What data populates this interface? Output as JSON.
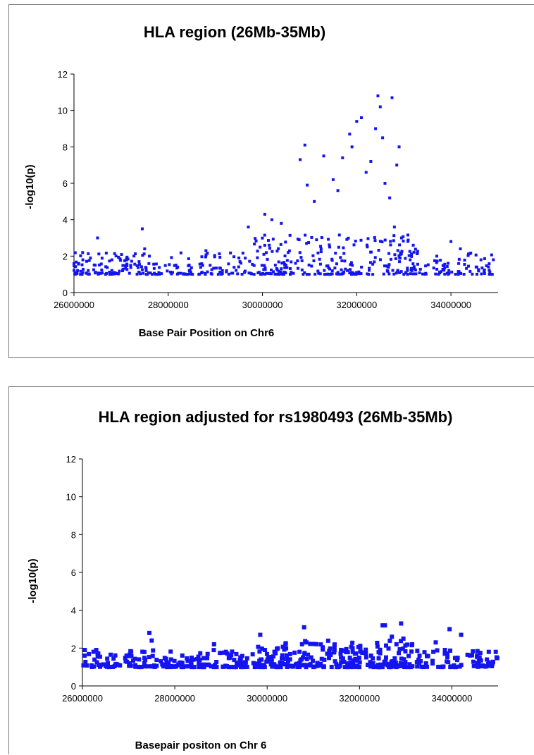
{
  "chart_data": [
    {
      "type": "scatter",
      "title": "HLA region (26Mb-35Mb)",
      "xlabel": "Base Pair Position on Chr6",
      "ylabel": "-log10(p)",
      "xlim": [
        26000000,
        35000000
      ],
      "ylim": [
        0,
        12
      ],
      "xticks": [
        "26000000",
        "28000000",
        "30000000",
        "32000000",
        "34000000"
      ],
      "yticks": [
        "0",
        "2",
        "4",
        "6",
        "8",
        "10",
        "12"
      ],
      "grid": false,
      "legend": "none",
      "marker_color": "#1414f0",
      "series": [
        {
          "x": [
            26100000,
            26350000,
            26500000,
            27450000,
            27500000,
            27600000,
            28200000,
            28800000,
            29500000,
            29700000,
            30050000,
            30200000,
            30400000,
            30800000,
            30900000,
            30950000,
            31100000,
            31300000,
            31500000,
            31600000,
            31700000,
            31850000,
            31900000,
            32000000,
            32100000,
            32200000,
            32300000,
            32400000,
            32450000,
            32500000,
            32550000,
            32600000,
            32700000,
            32750000,
            32800000,
            32850000,
            32900000,
            32950000,
            33200000,
            33700000,
            34000000,
            34200000,
            34550000,
            34900000
          ],
          "y": [
            1.6,
            1.9,
            3.0,
            3.5,
            2.4,
            2.0,
            1.4,
            2.3,
            1.9,
            3.6,
            4.3,
            4.0,
            3.8,
            7.3,
            8.1,
            5.9,
            5.0,
            7.5,
            6.2,
            5.6,
            7.4,
            8.7,
            8.0,
            9.4,
            9.6,
            6.6,
            7.2,
            9.0,
            10.8,
            10.2,
            8.5,
            6.0,
            5.2,
            10.7,
            3.6,
            7.0,
            8.0,
            3.0,
            2.6,
            2.0,
            2.8,
            2.4,
            1.4,
            1.8
          ]
        }
      ]
    },
    {
      "type": "scatter",
      "title": "HLA region adjusted for rs1980493 (26Mb-35Mb)",
      "xlabel": "Basepair positon on Chr 6",
      "ylabel": "-log10(p)",
      "xlim": [
        26000000,
        35000000
      ],
      "ylim": [
        0,
        12
      ],
      "xticks": [
        "26000000",
        "28000000",
        "30000000",
        "32000000",
        "34000000"
      ],
      "yticks": [
        "0",
        "2",
        "4",
        "6",
        "8",
        "10",
        "12"
      ],
      "grid": false,
      "legend": "none",
      "marker_color": "#1414f0",
      "series": [
        {
          "x": [
            26050000,
            26300000,
            26550000,
            27000000,
            27450000,
            27500000,
            27700000,
            28100000,
            28850000,
            29200000,
            29850000,
            29950000,
            30100000,
            30700000,
            30800000,
            30850000,
            31300000,
            31600000,
            31850000,
            32250000,
            32500000,
            32550000,
            32700000,
            32800000,
            32900000,
            32950000,
            33300000,
            33650000,
            33850000,
            33950000,
            34200000,
            34600000,
            34950000
          ],
          "y": [
            1.9,
            1.9,
            1.2,
            1.6,
            2.8,
            2.4,
            1.3,
            1.2,
            2.2,
            1.5,
            2.7,
            1.9,
            1.4,
            1.8,
            3.1,
            2.3,
            1.7,
            1.5,
            2.0,
            1.6,
            3.2,
            3.2,
            2.6,
            2.2,
            3.3,
            2.5,
            1.6,
            2.3,
            1.9,
            3.0,
            2.7,
            1.5,
            1.8
          ]
        }
      ]
    }
  ]
}
